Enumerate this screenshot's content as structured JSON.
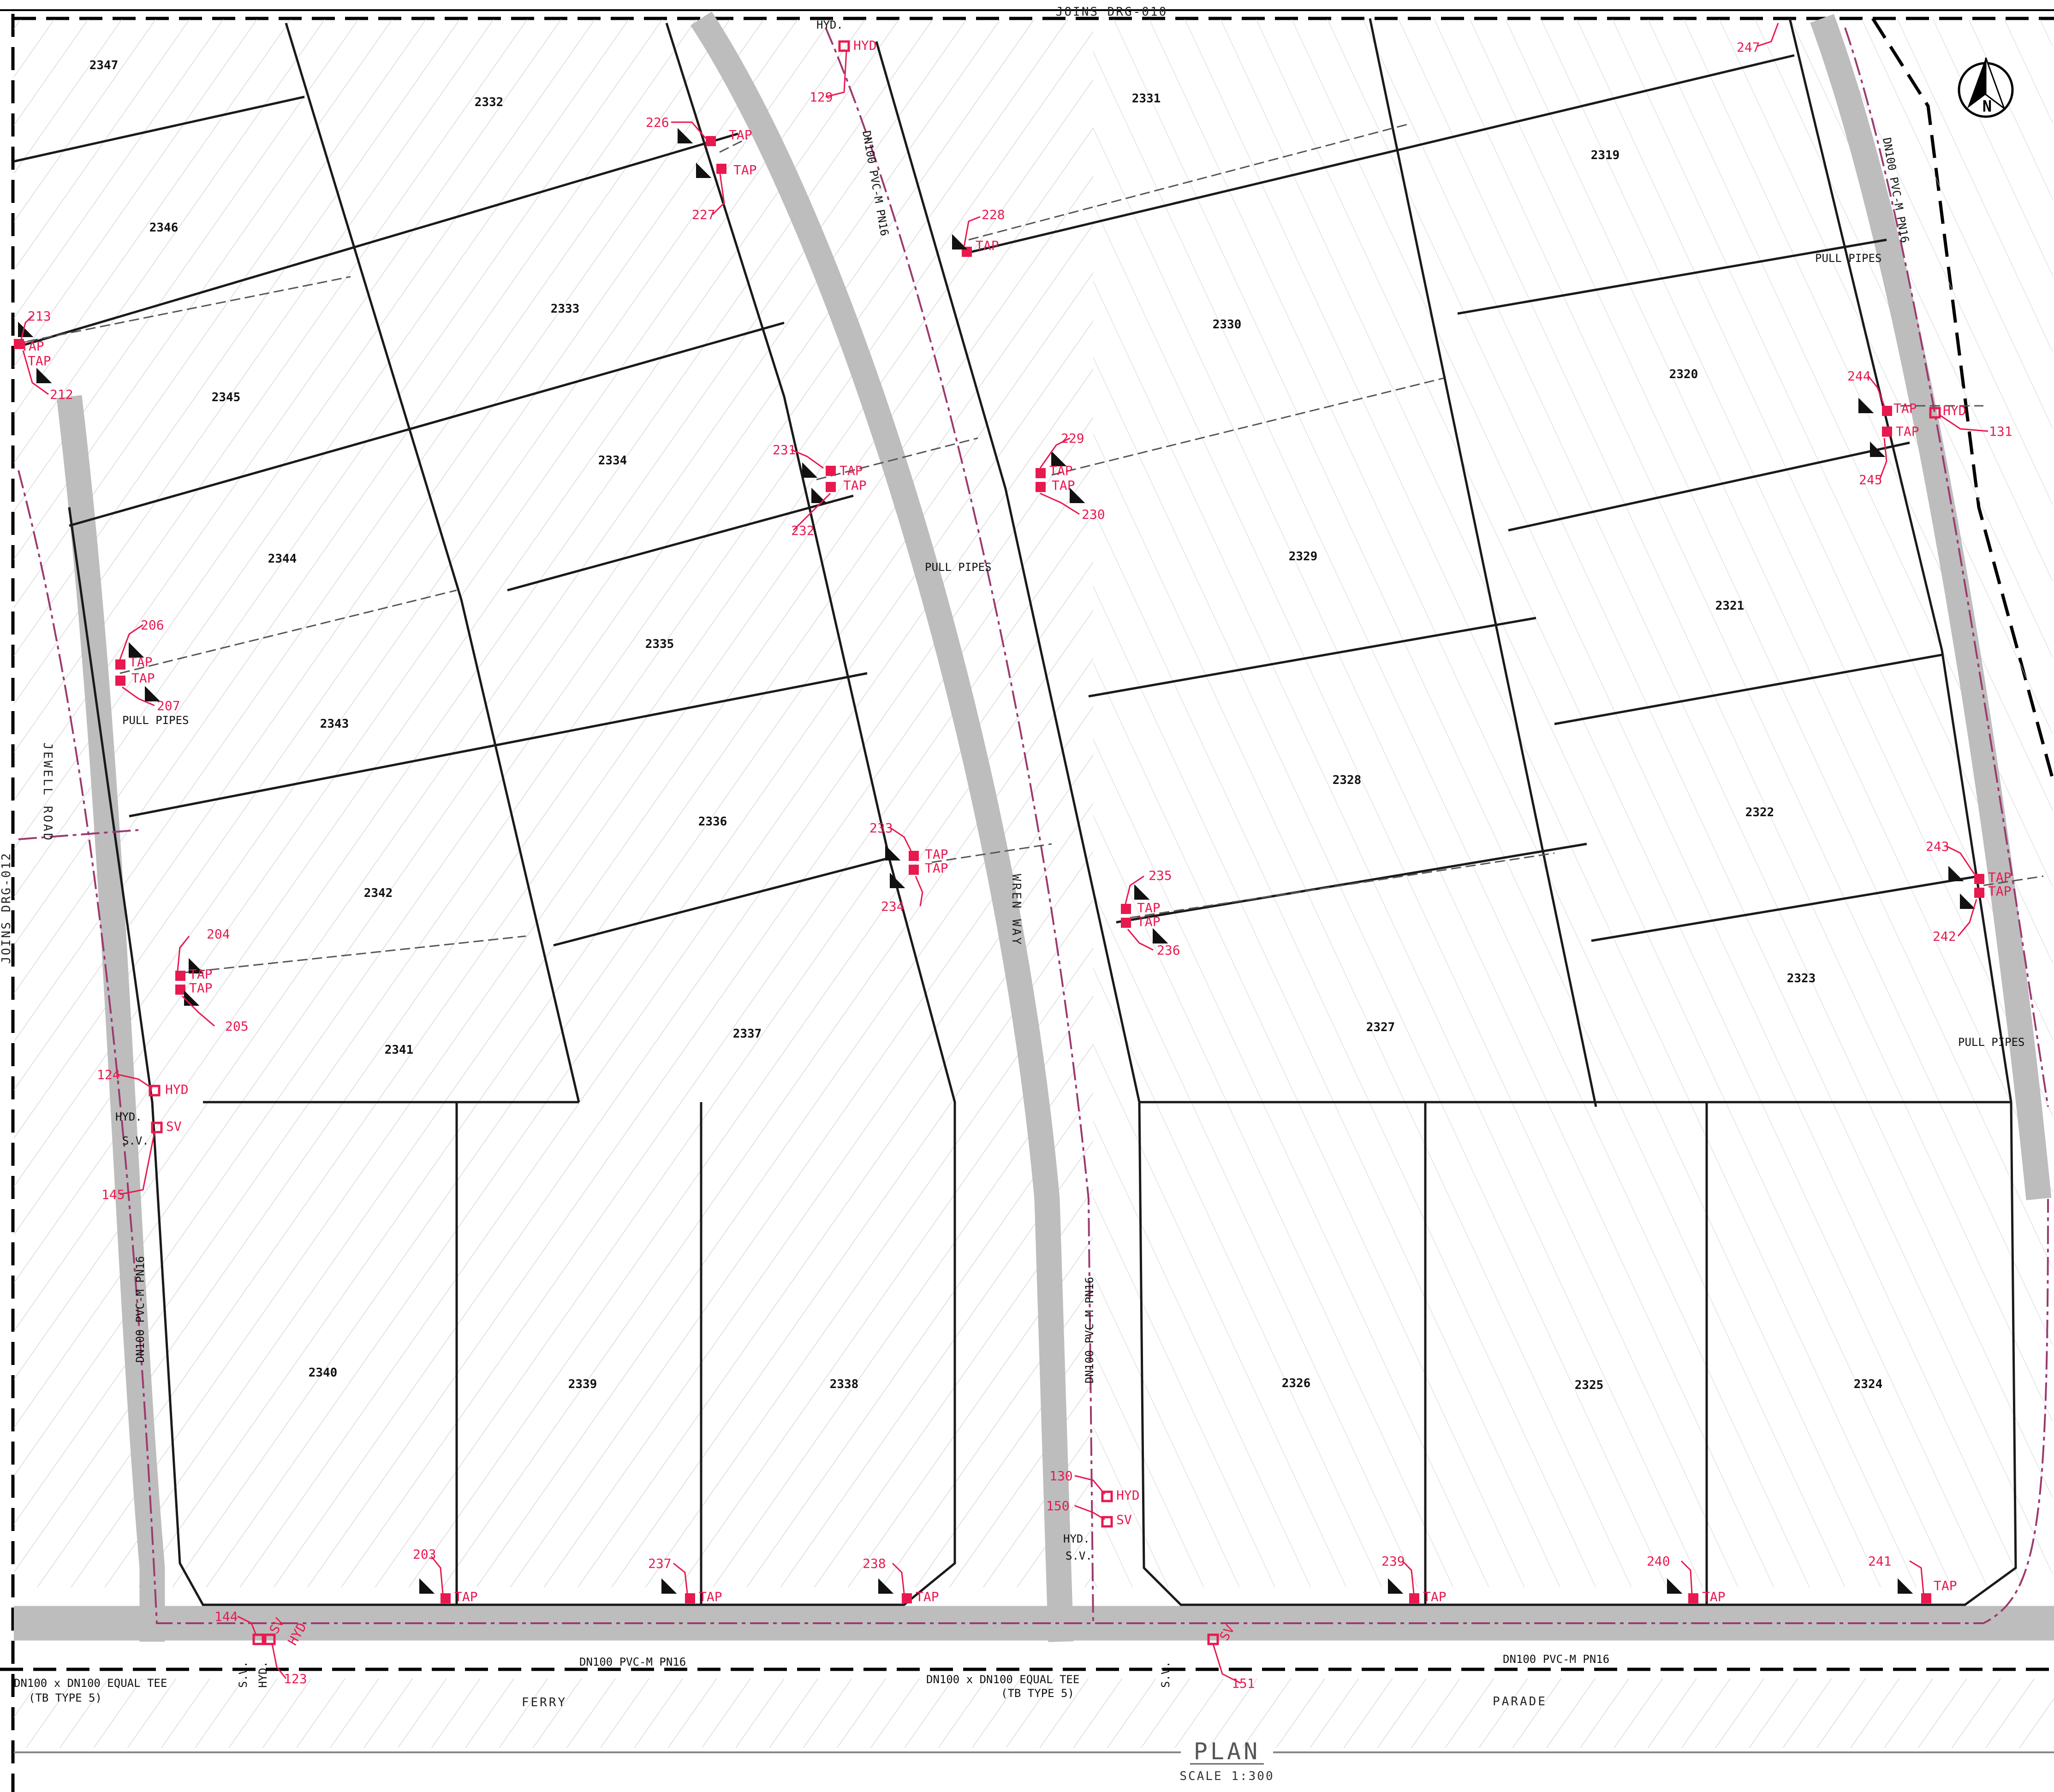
{
  "sheet": {
    "top_join": "JOINS DRG-010",
    "left_join": "JOINS DRG-012",
    "title": "PLAN",
    "scale": "SCALE 1:300"
  },
  "lots": [
    {
      "id": "2347"
    },
    {
      "id": "2332"
    },
    {
      "id": "2331"
    },
    {
      "id": "2319"
    },
    {
      "id": "2346"
    },
    {
      "id": "2333"
    },
    {
      "id": "2330"
    },
    {
      "id": "2320"
    },
    {
      "id": "2345"
    },
    {
      "id": "2334"
    },
    {
      "id": "2329"
    },
    {
      "id": "2321"
    },
    {
      "id": "2344"
    },
    {
      "id": "2335"
    },
    {
      "id": "2343"
    },
    {
      "id": "2328"
    },
    {
      "id": "2322"
    },
    {
      "id": "2336"
    },
    {
      "id": "2342"
    },
    {
      "id": "2327"
    },
    {
      "id": "2323"
    },
    {
      "id": "2341"
    },
    {
      "id": "2337"
    },
    {
      "id": "2340"
    },
    {
      "id": "2339"
    },
    {
      "id": "2338"
    },
    {
      "id": "2326"
    },
    {
      "id": "2325"
    },
    {
      "id": "2324"
    }
  ],
  "roads": {
    "jewell": "JEWELL ROAD",
    "wren": "WREN WAY",
    "ferry": "FERRY",
    "parade": "PARADE"
  },
  "pipes": {
    "main_label": "DN100 PVC-M PN16",
    "pull_pipes": "PULL PIPES",
    "tee_label": "DN100 x DN100 EQUAL TEE",
    "tee_type": "(TB TYPE 5)"
  },
  "fittings": {
    "tap": "TAP",
    "hyd": "HYD",
    "sv": "SV",
    "hyd_dot": "HYD.",
    "sv_dot": "S.V."
  },
  "refs": [
    "247",
    "129",
    "226",
    "227",
    "228",
    "213",
    "212",
    "231",
    "232",
    "229",
    "230",
    "244",
    "245",
    "131",
    "206",
    "207",
    "233",
    "234",
    "235",
    "236",
    "243",
    "242",
    "204",
    "205",
    "124",
    "145",
    "130",
    "150",
    "203",
    "237",
    "238",
    "239",
    "240",
    "241",
    "144",
    "123",
    "151"
  ]
}
